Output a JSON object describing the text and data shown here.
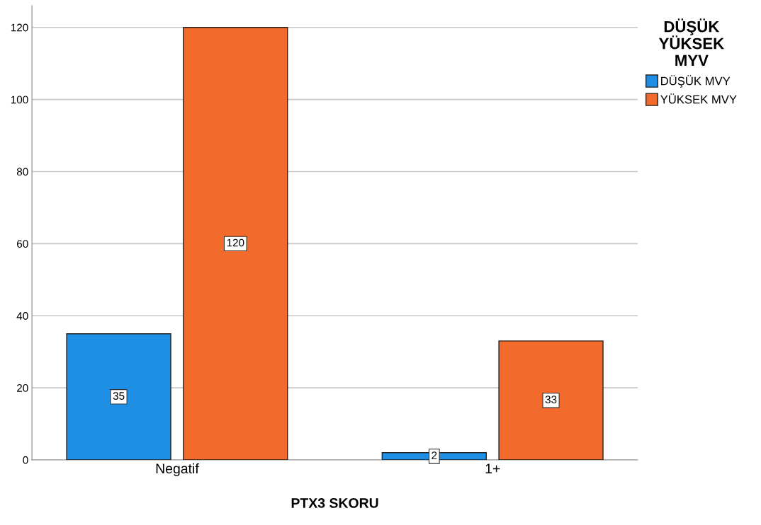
{
  "chart_data": {
    "type": "bar",
    "xlabel": "PTX3 SKORU",
    "legend_title": "DÜŞÜK\nYÜKSEK\nMYV",
    "categories": [
      "Negatif",
      "1+"
    ],
    "series": [
      {
        "name": "DÜŞÜK MVY",
        "color": "#1f8fe6",
        "values": [
          35,
          2
        ]
      },
      {
        "name": "YÜKSEK MVY",
        "color": "#f26a2c",
        "values": [
          120,
          33
        ]
      }
    ],
    "ylim": [
      0,
      126
    ],
    "yticks": [
      0,
      20,
      40,
      60,
      80,
      100,
      120
    ],
    "grid": "y",
    "legend": "top right",
    "data_labels": true
  }
}
